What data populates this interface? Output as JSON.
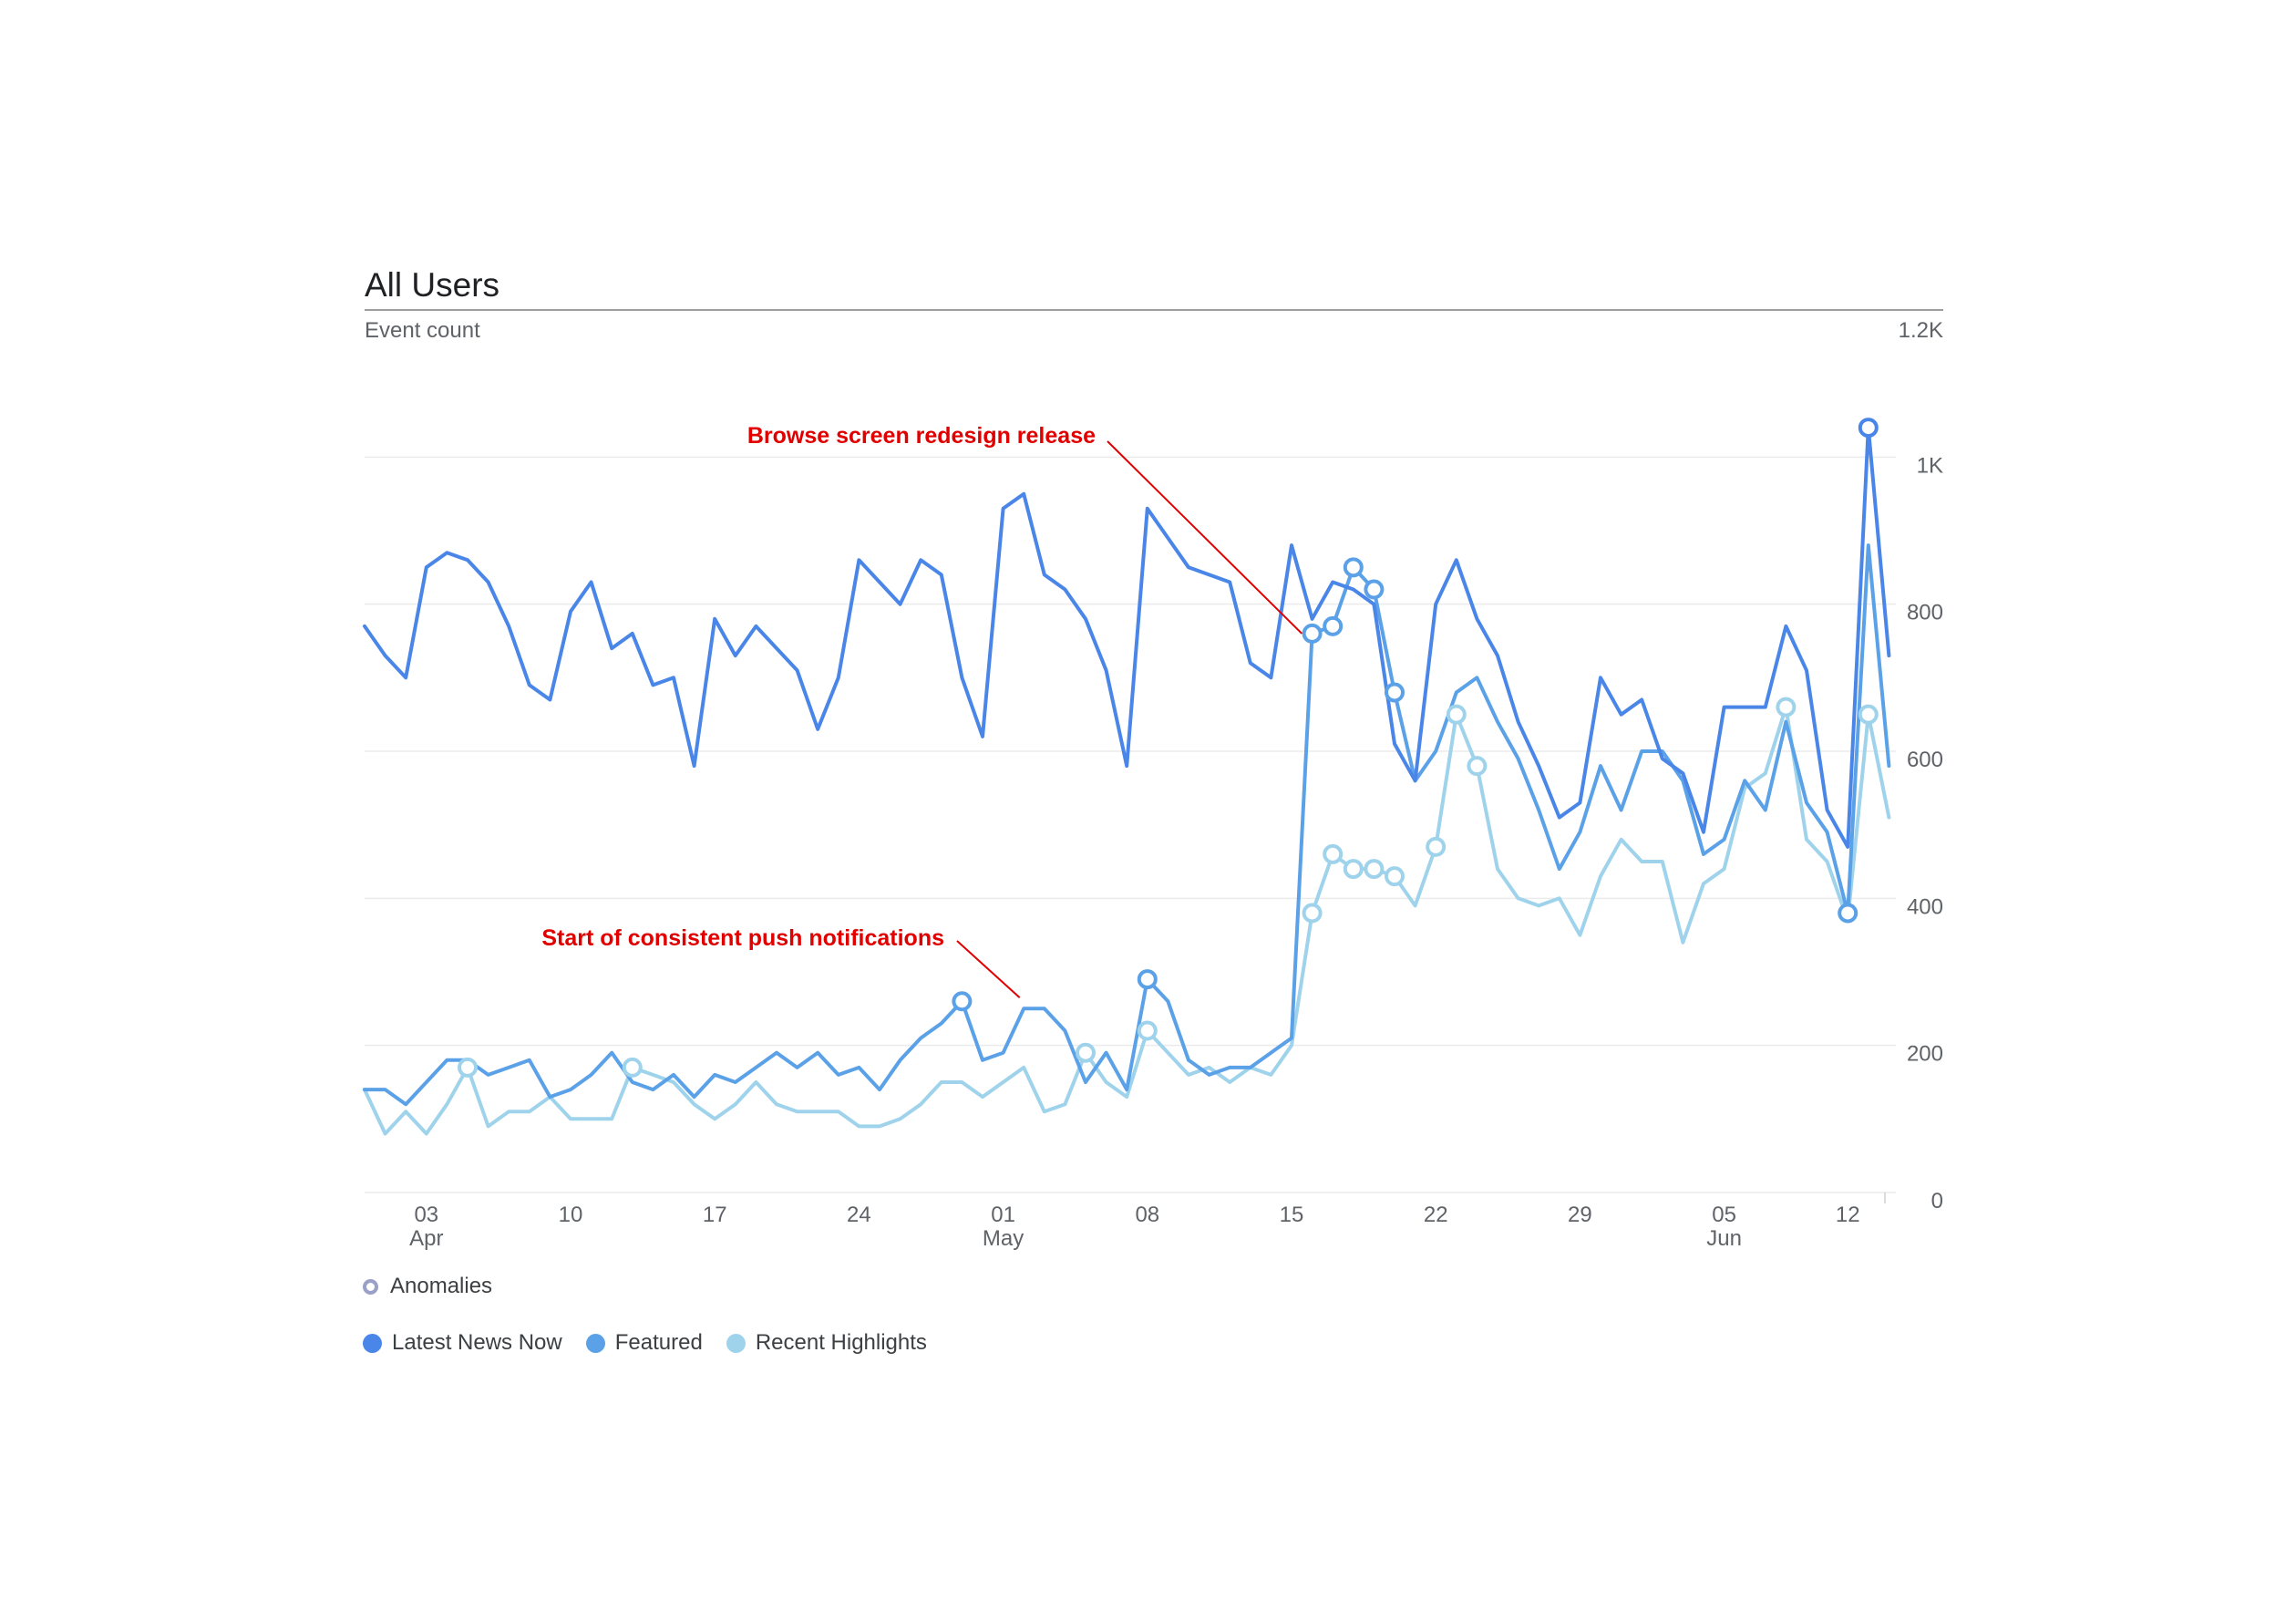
{
  "chart_data": {
    "type": "line",
    "title": "All Users",
    "subtitle": "Event count",
    "ylim": [
      0,
      1200
    ],
    "yticks": [
      {
        "value": 0,
        "label": "0"
      },
      {
        "value": 200,
        "label": "200"
      },
      {
        "value": 400,
        "label": "400"
      },
      {
        "value": 600,
        "label": "600"
      },
      {
        "value": 800,
        "label": "800"
      },
      {
        "value": 1000,
        "label": "1K"
      },
      {
        "value": 1200,
        "label": "1.2K"
      }
    ],
    "x_start_day": 0,
    "x_end_day": 75,
    "xticks": [
      {
        "day": 3,
        "label": "03",
        "sublabel": "Apr"
      },
      {
        "day": 10,
        "label": "10",
        "sublabel": ""
      },
      {
        "day": 17,
        "label": "17",
        "sublabel": ""
      },
      {
        "day": 24,
        "label": "24",
        "sublabel": ""
      },
      {
        "day": 31,
        "label": "01",
        "sublabel": "May"
      },
      {
        "day": 38,
        "label": "08",
        "sublabel": ""
      },
      {
        "day": 45,
        "label": "15",
        "sublabel": ""
      },
      {
        "day": 52,
        "label": "22",
        "sublabel": ""
      },
      {
        "day": 59,
        "label": "29",
        "sublabel": ""
      },
      {
        "day": 66,
        "label": "05",
        "sublabel": "Jun"
      },
      {
        "day": 72,
        "label": "12",
        "sublabel": ""
      }
    ],
    "series": [
      {
        "name": "Latest News Now",
        "color": "#4a86e8",
        "values": [
          770,
          730,
          700,
          850,
          870,
          860,
          830,
          770,
          690,
          670,
          790,
          830,
          740,
          760,
          690,
          700,
          580,
          780,
          730,
          770,
          740,
          710,
          630,
          700,
          860,
          830,
          800,
          860,
          840,
          700,
          620,
          930,
          950,
          840,
          820,
          780,
          710,
          580,
          930,
          890,
          850,
          840,
          830,
          720,
          700,
          880,
          780,
          830,
          820,
          800,
          610,
          560,
          800,
          860,
          780,
          730,
          640,
          580,
          510,
          530,
          700,
          650,
          670,
          590,
          570,
          490,
          660,
          660,
          660,
          770,
          710,
          520,
          470,
          1040,
          730
        ],
        "anomalies": [
          73
        ]
      },
      {
        "name": "Featured",
        "color": "#5aa1e8",
        "values": [
          140,
          140,
          120,
          150,
          180,
          180,
          160,
          170,
          180,
          130,
          140,
          160,
          190,
          150,
          140,
          160,
          130,
          160,
          150,
          170,
          190,
          170,
          190,
          160,
          170,
          140,
          180,
          210,
          230,
          260,
          180,
          190,
          250,
          250,
          220,
          150,
          190,
          140,
          290,
          260,
          180,
          160,
          170,
          170,
          190,
          210,
          760,
          770,
          850,
          820,
          680,
          560,
          600,
          680,
          700,
          640,
          590,
          520,
          440,
          490,
          580,
          520,
          600,
          600,
          560,
          460,
          480,
          560,
          520,
          640,
          530,
          490,
          380,
          880,
          580
        ],
        "anomalies": [
          29,
          38,
          46,
          47,
          48,
          49,
          50,
          72
        ]
      },
      {
        "name": "Recent Highlights",
        "color": "#9fd3ec",
        "values": [
          140,
          80,
          110,
          80,
          120,
          170,
          90,
          110,
          110,
          130,
          100,
          100,
          100,
          170,
          160,
          150,
          120,
          100,
          120,
          150,
          120,
          110,
          110,
          110,
          90,
          90,
          100,
          120,
          150,
          150,
          130,
          150,
          170,
          110,
          120,
          190,
          150,
          130,
          220,
          190,
          160,
          170,
          150,
          170,
          160,
          200,
          380,
          460,
          440,
          440,
          430,
          390,
          470,
          650,
          580,
          440,
          400,
          390,
          400,
          350,
          430,
          480,
          450,
          450,
          340,
          420,
          440,
          550,
          570,
          660,
          480,
          450,
          370,
          650,
          510
        ],
        "anomalies": [
          5,
          13,
          35,
          38,
          46,
          47,
          48,
          49,
          50,
          52,
          53,
          54,
          69,
          73
        ]
      }
    ],
    "annotations": [
      {
        "text": "Browse screen redesign release",
        "color": "#e00000"
      },
      {
        "text": "Start of consistent push notifications",
        "color": "#e00000"
      }
    ],
    "legend": {
      "anomalies_label": "Anomalies",
      "placement": "bottom-left"
    }
  }
}
